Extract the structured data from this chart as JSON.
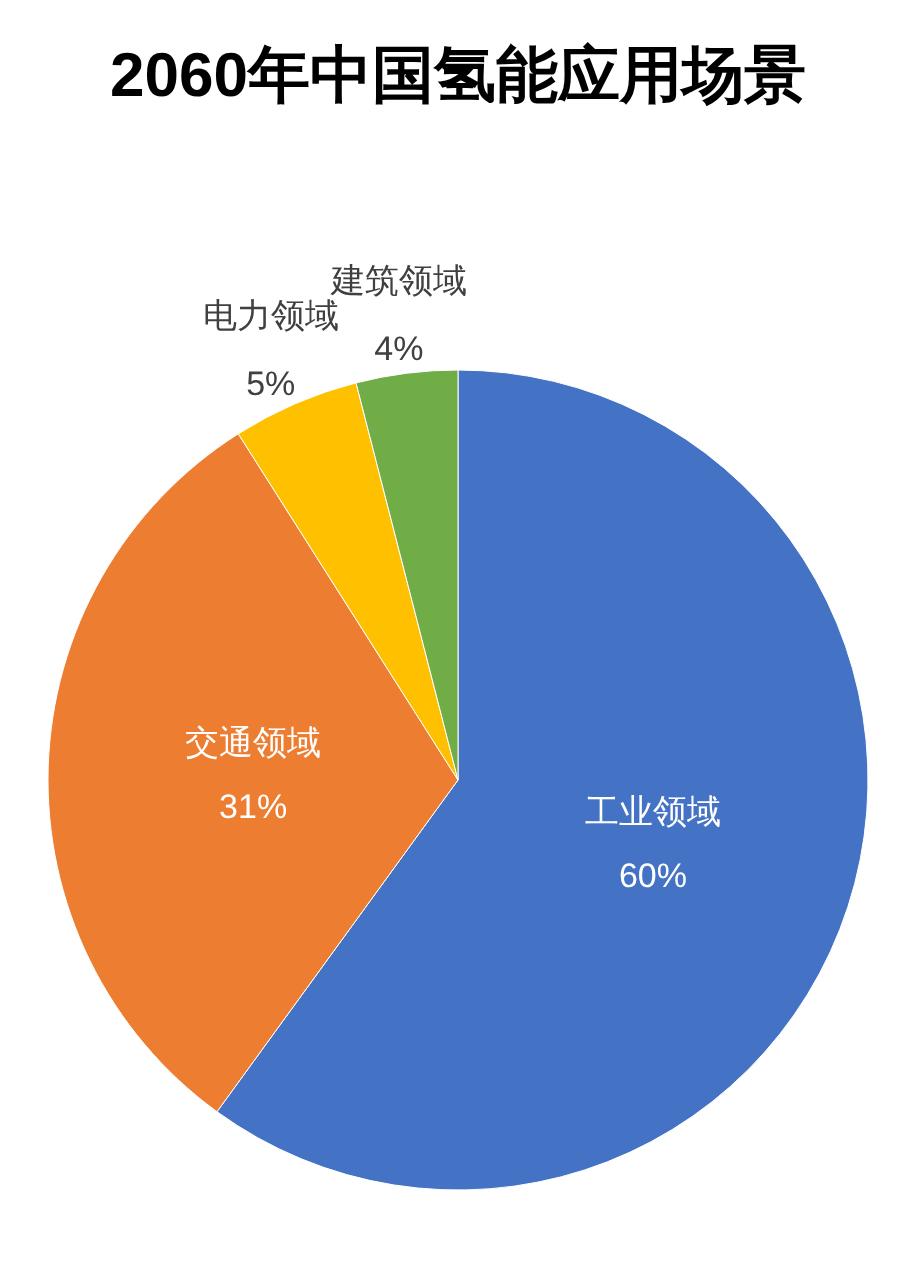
{
  "chart_data": {
    "type": "pie",
    "title": "2060年中国氢能应用场景",
    "categories": [
      "工业领域",
      "交通领域",
      "电力领域",
      "建筑领域"
    ],
    "values": [
      60,
      31,
      5,
      4
    ],
    "colors": [
      "#4472c4",
      "#ed7d31",
      "#ffc000",
      "#70ad47"
    ],
    "value_labels": [
      "60%",
      "31%",
      "5%",
      "4%"
    ],
    "legend": false
  }
}
